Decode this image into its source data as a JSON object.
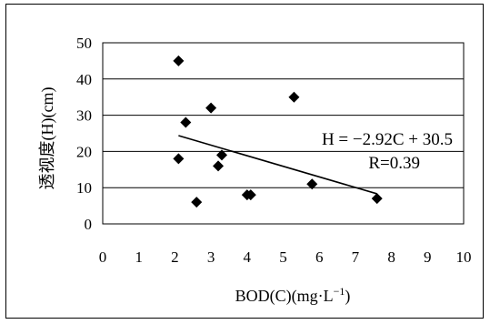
{
  "chart_data": {
    "type": "scatter",
    "title": "",
    "xlabel": "BOD(C)(mg·L",
    "xlabel_sup": "−1",
    "xlabel_close": ")",
    "ylabel": "透视度(H)(cm)",
    "xlim": [
      0,
      10
    ],
    "ylim": [
      0,
      50
    ],
    "xticks": [
      0,
      1,
      2,
      3,
      4,
      5,
      6,
      7,
      8,
      9,
      10
    ],
    "yticks": [
      0,
      10,
      20,
      30,
      40,
      50
    ],
    "grid": "horizontal",
    "points": [
      {
        "x": 2.1,
        "y": 45
      },
      {
        "x": 2.3,
        "y": 28
      },
      {
        "x": 2.1,
        "y": 18
      },
      {
        "x": 2.6,
        "y": 6
      },
      {
        "x": 3.0,
        "y": 32
      },
      {
        "x": 3.2,
        "y": 16
      },
      {
        "x": 3.3,
        "y": 19
      },
      {
        "x": 4.0,
        "y": 8
      },
      {
        "x": 4.1,
        "y": 8
      },
      {
        "x": 5.3,
        "y": 35
      },
      {
        "x": 5.8,
        "y": 11
      },
      {
        "x": 7.6,
        "y": 7
      }
    ],
    "trendline": {
      "slope": -2.92,
      "intercept": 30.5,
      "x_start": 2.1,
      "x_end": 7.6
    },
    "equation": "H = −2.92C + 30.5",
    "r_value": "R=0.39",
    "marker_color": "#000000"
  }
}
